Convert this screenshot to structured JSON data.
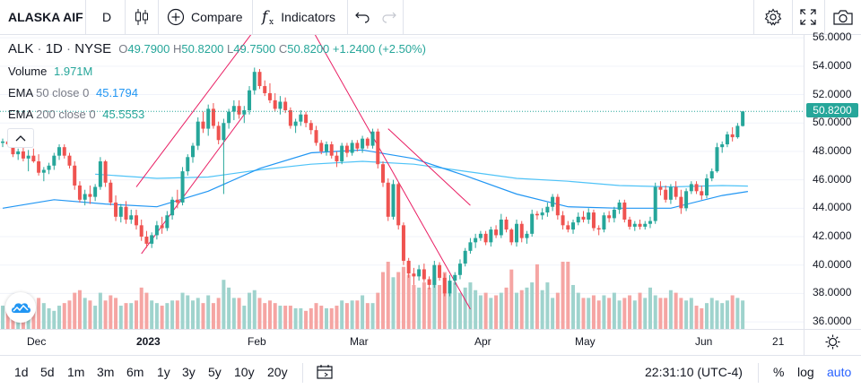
{
  "toolbar": {
    "symbol": "ALASKA AIF",
    "interval": "D",
    "compare_label": "Compare",
    "indicators_label": "Indicators",
    "icons": [
      "candles-icon",
      "compare-plus-icon",
      "indicators-fx-icon",
      "undo-icon",
      "redo-icon",
      "settings-gear-icon",
      "fullscreen-icon",
      "camera-icon"
    ]
  },
  "legend": {
    "ticker": "ALK",
    "interval": "1D",
    "exchange": "NYSE",
    "o_label": "O",
    "o_value": "49.7900",
    "h_label": "H",
    "h_value": "50.8200",
    "l_label": "L",
    "l_value": "49.7500",
    "c_label": "C",
    "c_value": "50.8200",
    "change": "+1.2400 (+2.50%)",
    "volume_label": "Volume",
    "volume_value": "1.971M",
    "ema50_label": "EMA",
    "ema50_params": "50 close 0",
    "ema50_value": "45.1794",
    "ema200_label": "EMA",
    "ema200_params": "200 close 0",
    "ema200_value": "45.5553"
  },
  "colors": {
    "up": "#26a69a",
    "down": "#ef5350",
    "up_volume": "#9fd3cd",
    "down_volume": "#f5a5a3",
    "ema50": "#2196f3",
    "ema200": "#4fc3f7",
    "trendline": "#e91e63",
    "text_teal": "#26a69a",
    "ema_blue": "#2196f3"
  },
  "price_axis": {
    "labels": [
      "56.0000",
      "54.0000",
      "52.0000",
      "50.0000",
      "48.0000",
      "46.0000",
      "44.0000",
      "42.0000",
      "40.0000",
      "38.0000",
      "36.0000"
    ],
    "current_price": "50.8200"
  },
  "time_axis": {
    "labels": [
      "Dec",
      "2023",
      "Feb",
      "Mar",
      "Apr",
      "May",
      "Jun",
      "21"
    ]
  },
  "bottom": {
    "ranges": [
      "1d",
      "5d",
      "1m",
      "3m",
      "6m",
      "1y",
      "3y",
      "5y",
      "10y",
      "20y"
    ],
    "clock": "22:31:10 (UTC-4)",
    "percent": "%",
    "log": "log",
    "auto": "auto"
  },
  "chart_data": {
    "type": "candlestick",
    "ylim": [
      35.5,
      56.2
    ],
    "candles": [
      [
        48.6,
        48.9,
        48.3,
        48.7
      ],
      [
        48.7,
        49.1,
        48.4,
        48.5
      ],
      [
        48.5,
        48.7,
        47.6,
        47.8
      ],
      [
        47.8,
        48.2,
        47.4,
        48.0
      ],
      [
        48.0,
        48.4,
        47.3,
        47.5
      ],
      [
        47.5,
        48.1,
        46.6,
        47.7
      ],
      [
        47.7,
        48.2,
        47.2,
        47.3
      ],
      [
        47.3,
        47.8,
        46.3,
        46.5
      ],
      [
        46.5,
        46.9,
        45.9,
        46.7
      ],
      [
        46.7,
        47.2,
        46.4,
        47.0
      ],
      [
        47.0,
        47.9,
        46.7,
        47.7
      ],
      [
        47.7,
        48.5,
        47.4,
        48.3
      ],
      [
        48.3,
        48.5,
        47.5,
        47.7
      ],
      [
        47.7,
        47.9,
        46.8,
        47.0
      ],
      [
        47.0,
        47.3,
        45.3,
        45.6
      ],
      [
        45.6,
        45.9,
        44.4,
        44.6
      ],
      [
        44.6,
        45.3,
        44.2,
        45.0
      ],
      [
        45.0,
        45.6,
        44.3,
        44.8
      ],
      [
        44.8,
        45.7,
        44.5,
        45.5
      ],
      [
        45.5,
        47.6,
        45.3,
        47.3
      ],
      [
        47.3,
        47.4,
        45.5,
        45.8
      ],
      [
        45.8,
        46.0,
        44.2,
        44.4
      ],
      [
        44.4,
        44.9,
        43.1,
        43.4
      ],
      [
        43.4,
        44.3,
        43.0,
        44.1
      ],
      [
        44.1,
        44.5,
        42.9,
        43.2
      ],
      [
        43.2,
        43.9,
        42.9,
        43.5
      ],
      [
        43.5,
        43.9,
        42.5,
        42.8
      ],
      [
        42.8,
        43.2,
        41.7,
        42.0
      ],
      [
        42.0,
        42.4,
        41.2,
        41.5
      ],
      [
        41.5,
        42.3,
        41.2,
        42.1
      ],
      [
        42.1,
        43.1,
        41.8,
        42.8
      ],
      [
        42.8,
        43.4,
        42.2,
        42.6
      ],
      [
        42.6,
        43.8,
        42.4,
        43.5
      ],
      [
        43.5,
        44.8,
        43.2,
        44.6
      ],
      [
        44.6,
        45.3,
        44.0,
        44.4
      ],
      [
        44.4,
        46.9,
        44.2,
        46.6
      ],
      [
        46.6,
        47.8,
        46.3,
        47.6
      ],
      [
        47.6,
        48.6,
        47.2,
        48.4
      ],
      [
        48.4,
        50.4,
        48.1,
        50.1
      ],
      [
        50.1,
        50.8,
        49.3,
        49.6
      ],
      [
        49.6,
        51.3,
        49.1,
        51.0
      ],
      [
        51.0,
        51.4,
        49.6,
        49.8
      ],
      [
        49.8,
        50.1,
        48.5,
        48.8
      ],
      [
        48.8,
        50.3,
        45.0,
        50.0
      ],
      [
        50.0,
        51.0,
        49.6,
        50.8
      ],
      [
        50.8,
        51.6,
        50.2,
        51.2
      ],
      [
        51.2,
        51.6,
        50.3,
        50.6
      ],
      [
        50.6,
        51.2,
        50.0,
        50.9
      ],
      [
        50.9,
        52.6,
        50.6,
        52.3
      ],
      [
        52.3,
        53.9,
        52.0,
        53.6
      ],
      [
        53.6,
        53.8,
        52.4,
        52.6
      ],
      [
        52.6,
        53.0,
        51.9,
        52.1
      ],
      [
        52.1,
        52.8,
        51.4,
        51.6
      ],
      [
        51.6,
        52.1,
        50.8,
        51.0
      ],
      [
        51.0,
        51.9,
        50.6,
        51.5
      ],
      [
        51.5,
        51.8,
        50.7,
        50.9
      ],
      [
        50.9,
        51.1,
        49.6,
        49.8
      ],
      [
        49.8,
        50.3,
        49.3,
        50.1
      ],
      [
        50.1,
        50.9,
        49.8,
        50.6
      ],
      [
        50.6,
        50.8,
        49.7,
        50.0
      ],
      [
        50.0,
        50.2,
        49.2,
        49.5
      ],
      [
        49.5,
        49.8,
        48.4,
        48.6
      ],
      [
        48.6,
        48.8,
        47.8,
        48.0
      ],
      [
        48.0,
        48.7,
        47.7,
        48.5
      ],
      [
        48.5,
        48.7,
        47.5,
        47.7
      ],
      [
        47.7,
        48.0,
        46.9,
        47.3
      ],
      [
        47.3,
        48.6,
        47.1,
        48.4
      ],
      [
        48.4,
        48.6,
        47.6,
        47.9
      ],
      [
        47.9,
        48.8,
        47.7,
        48.6
      ],
      [
        48.6,
        48.8,
        48.0,
        48.2
      ],
      [
        48.2,
        49.1,
        47.9,
        48.9
      ],
      [
        48.9,
        49.0,
        48.2,
        48.4
      ],
      [
        48.4,
        49.6,
        48.2,
        49.4
      ],
      [
        49.4,
        49.6,
        46.8,
        47.1
      ],
      [
        47.1,
        47.3,
        45.5,
        45.8
      ],
      [
        45.8,
        46.1,
        43.1,
        43.4
      ],
      [
        43.4,
        46.0,
        43.2,
        45.7
      ],
      [
        45.7,
        45.8,
        42.5,
        42.8
      ],
      [
        42.8,
        43.0,
        40.0,
        40.3
      ],
      [
        40.3,
        40.5,
        39.1,
        39.4
      ],
      [
        39.4,
        39.8,
        38.6,
        39.2
      ],
      [
        39.2,
        40.0,
        38.9,
        39.7
      ],
      [
        39.7,
        40.1,
        38.8,
        39.0
      ],
      [
        39.0,
        39.2,
        38.3,
        38.6
      ],
      [
        38.6,
        40.3,
        38.4,
        40.0
      ],
      [
        40.0,
        40.2,
        38.9,
        39.1
      ],
      [
        39.1,
        39.4,
        37.8,
        38.0
      ],
      [
        38.0,
        39.3,
        37.8,
        38.9
      ],
      [
        38.9,
        39.5,
        38.6,
        39.3
      ],
      [
        39.3,
        40.4,
        39.0,
        40.1
      ],
      [
        40.1,
        41.2,
        39.9,
        41.0
      ],
      [
        41.0,
        41.9,
        40.8,
        41.6
      ],
      [
        41.6,
        42.2,
        41.2,
        41.9
      ],
      [
        41.9,
        42.4,
        41.7,
        42.2
      ],
      [
        42.2,
        42.4,
        41.4,
        41.6
      ],
      [
        41.6,
        42.7,
        41.3,
        42.5
      ],
      [
        42.5,
        42.8,
        41.9,
        42.1
      ],
      [
        42.1,
        43.6,
        41.9,
        43.2
      ],
      [
        43.2,
        43.4,
        42.3,
        42.5
      ],
      [
        42.5,
        42.6,
        41.4,
        41.6
      ],
      [
        41.6,
        43.2,
        41.3,
        42.9
      ],
      [
        42.9,
        43.1,
        41.6,
        41.9
      ],
      [
        41.9,
        42.4,
        41.5,
        42.2
      ],
      [
        42.2,
        43.9,
        42.0,
        43.6
      ],
      [
        43.6,
        43.8,
        43.2,
        43.5
      ],
      [
        43.5,
        44.0,
        43.2,
        43.7
      ],
      [
        43.7,
        44.4,
        43.4,
        44.1
      ],
      [
        44.1,
        45.0,
        43.8,
        44.8
      ],
      [
        44.8,
        45.0,
        43.2,
        43.5
      ],
      [
        43.5,
        43.8,
        42.5,
        42.8
      ],
      [
        42.8,
        43.1,
        42.3,
        42.5
      ],
      [
        42.5,
        43.2,
        42.2,
        43.0
      ],
      [
        43.0,
        43.7,
        42.8,
        43.4
      ],
      [
        43.4,
        43.8,
        43.0,
        43.2
      ],
      [
        43.2,
        44.0,
        42.9,
        43.7
      ],
      [
        43.7,
        43.9,
        42.4,
        42.6
      ],
      [
        42.6,
        42.8,
        42.1,
        42.5
      ],
      [
        42.5,
        43.7,
        42.3,
        43.5
      ],
      [
        43.5,
        43.8,
        43.0,
        43.3
      ],
      [
        43.3,
        44.1,
        43.0,
        43.9
      ],
      [
        43.9,
        44.6,
        43.6,
        44.4
      ],
      [
        44.4,
        44.6,
        43.0,
        43.2
      ],
      [
        43.2,
        43.4,
        42.5,
        42.7
      ],
      [
        42.7,
        43.1,
        42.4,
        42.9
      ],
      [
        42.9,
        43.2,
        42.5,
        42.7
      ],
      [
        42.7,
        43.1,
        42.5,
        42.9
      ],
      [
        42.9,
        43.4,
        42.6,
        43.1
      ],
      [
        43.1,
        45.8,
        42.9,
        45.5
      ],
      [
        45.5,
        45.9,
        44.9,
        45.3
      ],
      [
        45.3,
        45.6,
        44.4,
        44.6
      ],
      [
        44.6,
        45.7,
        44.3,
        45.5
      ],
      [
        45.5,
        45.9,
        44.6,
        44.8
      ],
      [
        44.8,
        45.3,
        43.6,
        44.0
      ],
      [
        44.0,
        45.4,
        43.8,
        45.2
      ],
      [
        45.2,
        45.9,
        45.0,
        45.7
      ],
      [
        45.7,
        45.9,
        45.0,
        45.2
      ],
      [
        45.2,
        45.6,
        44.6,
        44.9
      ],
      [
        44.9,
        46.4,
        44.7,
        46.1
      ],
      [
        46.1,
        46.8,
        45.9,
        46.6
      ],
      [
        46.6,
        48.6,
        46.5,
        48.3
      ],
      [
        48.3,
        48.7,
        47.9,
        48.5
      ],
      [
        48.5,
        49.4,
        48.3,
        49.2
      ],
      [
        49.2,
        49.7,
        48.7,
        49.0
      ],
      [
        49.0,
        50.0,
        48.9,
        49.8
      ],
      [
        49.79,
        50.82,
        49.75,
        50.82
      ]
    ],
    "volume": [
      0.9,
      0.7,
      1.0,
      0.8,
      1.1,
      0.9,
      0.8,
      1.2,
      1.0,
      0.8,
      0.7,
      0.9,
      1.0,
      1.1,
      1.4,
      1.5,
      1.2,
      1.1,
      0.9,
      1.4,
      1.1,
      1.3,
      1.2,
      0.9,
      1.0,
      1.0,
      1.1,
      1.6,
      1.4,
      1.1,
      1.0,
      0.9,
      1.0,
      1.1,
      1.1,
      1.4,
      1.3,
      1.1,
      1.2,
      1.0,
      1.3,
      1.0,
      1.2,
      1.9,
      1.6,
      1.2,
      1.2,
      0.9,
      1.4,
      1.5,
      1.2,
      1.0,
      1.1,
      1.0,
      0.9,
      0.9,
      0.9,
      0.8,
      0.8,
      0.7,
      0.8,
      1.0,
      0.9,
      0.8,
      0.8,
      0.9,
      1.1,
      1.0,
      1.1,
      1.1,
      1.3,
      1.0,
      1.0,
      1.4,
      2.2,
      2.6,
      2.0,
      2.2,
      2.4,
      2.1,
      1.7,
      1.6,
      1.8,
      1.6,
      2.0,
      1.7,
      2.2,
      1.5,
      1.8,
      1.4,
      1.6,
      1.8,
      1.5,
      1.3,
      1.4,
      1.2,
      1.3,
      1.4,
      1.6,
      2.3,
      1.4,
      1.5,
      1.6,
      1.8,
      2.5,
      1.5,
      1.8,
      1.2,
      1.4,
      2.6,
      2.6,
      1.7,
      1.4,
      1.2,
      1.2,
      1.3,
      1.1,
      1.3,
      1.2,
      1.4,
      1.1,
      1.2,
      1.3,
      1.1,
      1.4,
      1.2,
      1.6,
      1.3,
      1.2,
      1.2,
      1.5,
      1.4,
      1.2,
      1.1,
      1.2,
      0.9,
      0.8,
      1.0,
      1.2,
      1.1,
      1.0,
      1.1,
      1.3,
      1.2,
      1.1,
      1.9
    ],
    "ema50": [
      [
        0,
        44.0
      ],
      [
        10,
        44.6
      ],
      [
        20,
        44.3
      ],
      [
        30,
        44.1
      ],
      [
        40,
        45.2
      ],
      [
        50,
        46.8
      ],
      [
        60,
        47.9
      ],
      [
        70,
        48.1
      ],
      [
        80,
        47.5
      ],
      [
        90,
        46.3
      ],
      [
        100,
        45.0
      ],
      [
        110,
        44.1
      ],
      [
        120,
        44.0
      ],
      [
        130,
        44.0
      ],
      [
        140,
        44.9
      ],
      [
        145,
        45.18
      ]
    ],
    "ema200": [
      [
        18,
        46.4
      ],
      [
        30,
        46.1
      ],
      [
        40,
        46.2
      ],
      [
        50,
        46.7
      ],
      [
        60,
        47.1
      ],
      [
        70,
        47.3
      ],
      [
        80,
        47.1
      ],
      [
        90,
        46.6
      ],
      [
        100,
        46.1
      ],
      [
        110,
        45.9
      ],
      [
        120,
        45.6
      ],
      [
        130,
        45.5
      ],
      [
        140,
        45.6
      ],
      [
        145,
        45.56
      ]
    ],
    "trendlines": [
      [
        [
          27,
          40.8
        ],
        [
          47,
          50.6
        ]
      ],
      [
        [
          26,
          45.5
        ],
        [
          52,
          58.0
        ]
      ],
      [
        [
          58,
          58.0
        ],
        [
          91,
          36.9
        ]
      ],
      [
        [
          75,
          49.6
        ],
        [
          91,
          44.2
        ]
      ]
    ]
  }
}
